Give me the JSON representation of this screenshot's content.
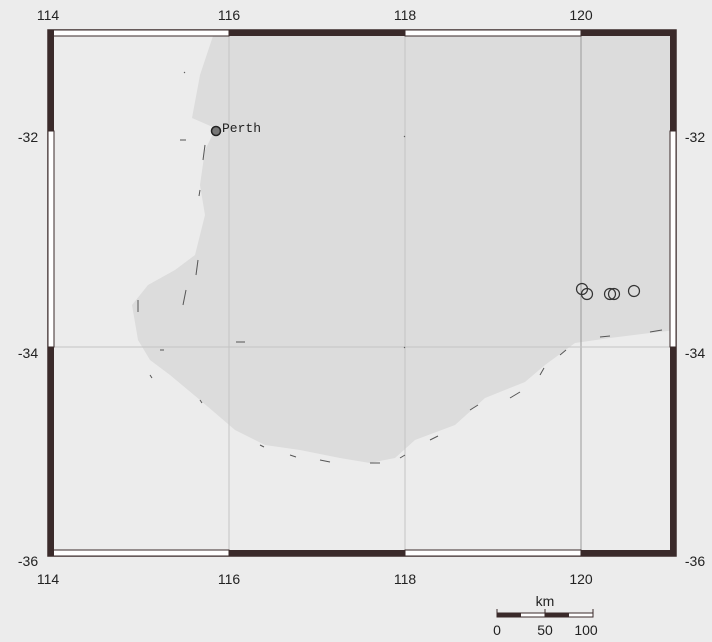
{
  "map": {
    "lon_ticks": [
      "114",
      "116",
      "118",
      "120"
    ],
    "lat_ticks": [
      "-32",
      "-34",
      "-36"
    ],
    "city": {
      "name": "Perth",
      "lon": 115.86,
      "lat": -31.95
    },
    "events": [
      {
        "lon": 120.05,
        "lat": -33.35
      },
      {
        "lon": 120.1,
        "lat": -33.4
      },
      {
        "lon": 120.35,
        "lat": -33.4
      },
      {
        "lon": 120.4,
        "lat": -33.4
      },
      {
        "lon": 120.6,
        "lat": -33.38
      }
    ],
    "scale_bar": {
      "unit": "km",
      "labels": [
        "0",
        "50",
        "100"
      ]
    },
    "colors": {
      "land": "#dcdcdc",
      "sea": "#ececec",
      "frame": "#3a2a2a",
      "grid": "#bdbdbd"
    }
  }
}
